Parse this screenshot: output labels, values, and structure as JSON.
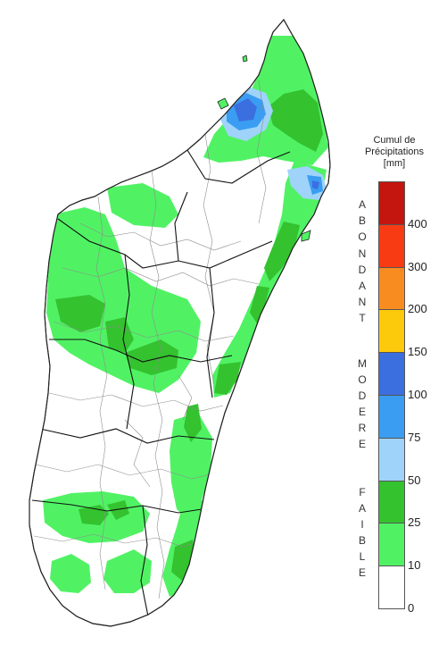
{
  "legend": {
    "title_line1": "Cumul de",
    "title_line2": "Précipitations",
    "unit": "[mm]",
    "classes": [
      {
        "from": 400,
        "to": null,
        "color": "#c4150e"
      },
      {
        "from": 300,
        "to": 400,
        "color": "#f93b14"
      },
      {
        "from": 200,
        "to": 300,
        "color": "#f98c20"
      },
      {
        "from": 150,
        "to": 200,
        "color": "#fcca0a"
      },
      {
        "from": 100,
        "to": 150,
        "color": "#3b6fe0"
      },
      {
        "from": 75,
        "to": 100,
        "color": "#3a9df2"
      },
      {
        "from": 50,
        "to": 75,
        "color": "#9fd3fa"
      },
      {
        "from": 25,
        "to": 50,
        "color": "#34c22f"
      },
      {
        "from": 10,
        "to": 25,
        "color": "#50f264"
      },
      {
        "from": 0,
        "to": 10,
        "color": "#ffffff"
      }
    ],
    "tick_labels": [
      "400",
      "300",
      "200",
      "150",
      "100",
      "75",
      "50",
      "25",
      "10",
      "0"
    ],
    "categories": [
      {
        "word": "ABONDANT",
        "letters": [
          "A",
          "B",
          "O",
          "N",
          "D",
          "A",
          "N",
          "T"
        ]
      },
      {
        "word": "MODERE",
        "letters": [
          "M",
          "O",
          "D",
          "E",
          "R",
          "E"
        ]
      },
      {
        "word": "FAIBLE",
        "letters": [
          "F",
          "A",
          "I",
          "B",
          "L",
          "E"
        ]
      }
    ]
  },
  "colors": {
    "outline": "#222222",
    "district_border": "#8c8c8c",
    "region_border": "#111111",
    "background": "#ffffff"
  }
}
